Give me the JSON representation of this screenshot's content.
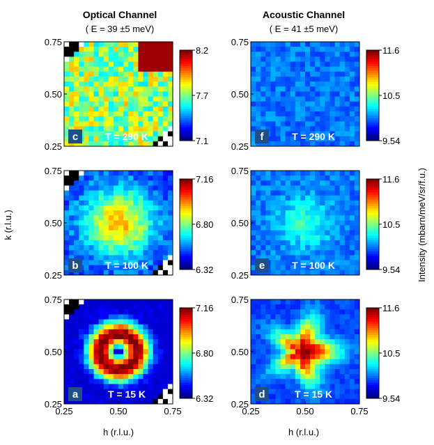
{
  "figure": {
    "column_titles": [
      {
        "title": "Optical Channel",
        "subtitle": "( E = 39 ±5 meV)"
      },
      {
        "title": "Acoustic Channel",
        "subtitle": "( E = 41 ±5 meV)"
      }
    ],
    "y_axis_label": "k (r.l.u.)",
    "x_axis_label": "h (r.l.u.)",
    "colorbar_label": "Intensity (mbarn/meV/sr/f.u.)"
  },
  "chart_data": [
    {
      "type": "heatmap",
      "panel": "c",
      "temperature": "T = 290 K",
      "channel": "Optical Channel",
      "xlim": [
        0.25,
        0.75
      ],
      "ylim": [
        0.25,
        0.75
      ],
      "xticks": [
        "0.25",
        "0.50",
        "0.75"
      ],
      "yticks": [
        "0.25",
        "0.50",
        "0.75"
      ],
      "colorbar": {
        "min": 7.1,
        "max": 8.2,
        "ticks": [
          "8.2",
          "7.7",
          "7.1"
        ]
      },
      "pattern": "speckled, hot corner at top-right",
      "colormap": "jet",
      "level": 0.5
    },
    {
      "type": "heatmap",
      "panel": "b",
      "temperature": "T = 100 K",
      "channel": "Optical Channel",
      "xlim": [
        0.25,
        0.75
      ],
      "ylim": [
        0.25,
        0.75
      ],
      "xticks": [
        "0.25",
        "0.50",
        "0.75"
      ],
      "yticks": [
        "0.25",
        "0.50",
        "0.75"
      ],
      "colorbar": {
        "min": 6.32,
        "max": 7.16,
        "ticks": [
          "7.16",
          "6.80",
          "6.32"
        ]
      },
      "pattern": "broad diffuse central blob",
      "colormap": "jet",
      "level": 0.45
    },
    {
      "type": "heatmap",
      "panel": "a",
      "temperature": "T = 15 K",
      "channel": "Optical Channel",
      "xlim": [
        0.25,
        0.75
      ],
      "ylim": [
        0.25,
        0.75
      ],
      "xticks": [
        "0.25",
        "0.50",
        "0.75"
      ],
      "yticks": [
        "0.25",
        "0.50",
        "0.75"
      ],
      "colorbar": {
        "min": 6.32,
        "max": 7.16,
        "ticks": [
          "7.16",
          "6.80",
          "6.32"
        ]
      },
      "pattern": "ring centered at (0.5, 0.5)",
      "colormap": "jet",
      "level": 0.85
    },
    {
      "type": "heatmap",
      "panel": "f",
      "temperature": "T = 290 K",
      "channel": "Acoustic Channel",
      "xlim": [
        0.25,
        0.75
      ],
      "ylim": [
        0.25,
        0.75
      ],
      "xticks": [
        "0.25",
        "0.50",
        "0.75"
      ],
      "yticks": [
        "0.25",
        "0.50",
        "0.75"
      ],
      "colorbar": {
        "min": 9.54,
        "max": 11.6,
        "ticks": [
          "11.6",
          "10.5",
          "9.54"
        ]
      },
      "pattern": "uniform low intensity",
      "colormap": "jet",
      "level": 0.3
    },
    {
      "type": "heatmap",
      "panel": "e",
      "temperature": "T = 100 K",
      "channel": "Acoustic Channel",
      "xlim": [
        0.25,
        0.75
      ],
      "ylim": [
        0.25,
        0.75
      ],
      "xticks": [
        "0.25",
        "0.50",
        "0.75"
      ],
      "yticks": [
        "0.25",
        "0.50",
        "0.75"
      ],
      "colorbar": {
        "min": 9.54,
        "max": 11.6,
        "ticks": [
          "11.6",
          "10.5",
          "9.54"
        ]
      },
      "pattern": "weak central blob",
      "colormap": "jet",
      "level": 0.35
    },
    {
      "type": "heatmap",
      "panel": "d",
      "temperature": "T = 15 K",
      "channel": "Acoustic Channel",
      "xlim": [
        0.25,
        0.75
      ],
      "ylim": [
        0.25,
        0.75
      ],
      "xticks": [
        "0.25",
        "0.50",
        "0.75"
      ],
      "yticks": [
        "0.25",
        "0.50",
        "0.75"
      ],
      "colorbar": {
        "min": 9.54,
        "max": 11.6,
        "ticks": [
          "11.6",
          "10.5",
          "9.54"
        ]
      },
      "pattern": "star-shaped peak centered at (0.45, 0.5)",
      "colormap": "jet",
      "level": 0.9
    }
  ]
}
